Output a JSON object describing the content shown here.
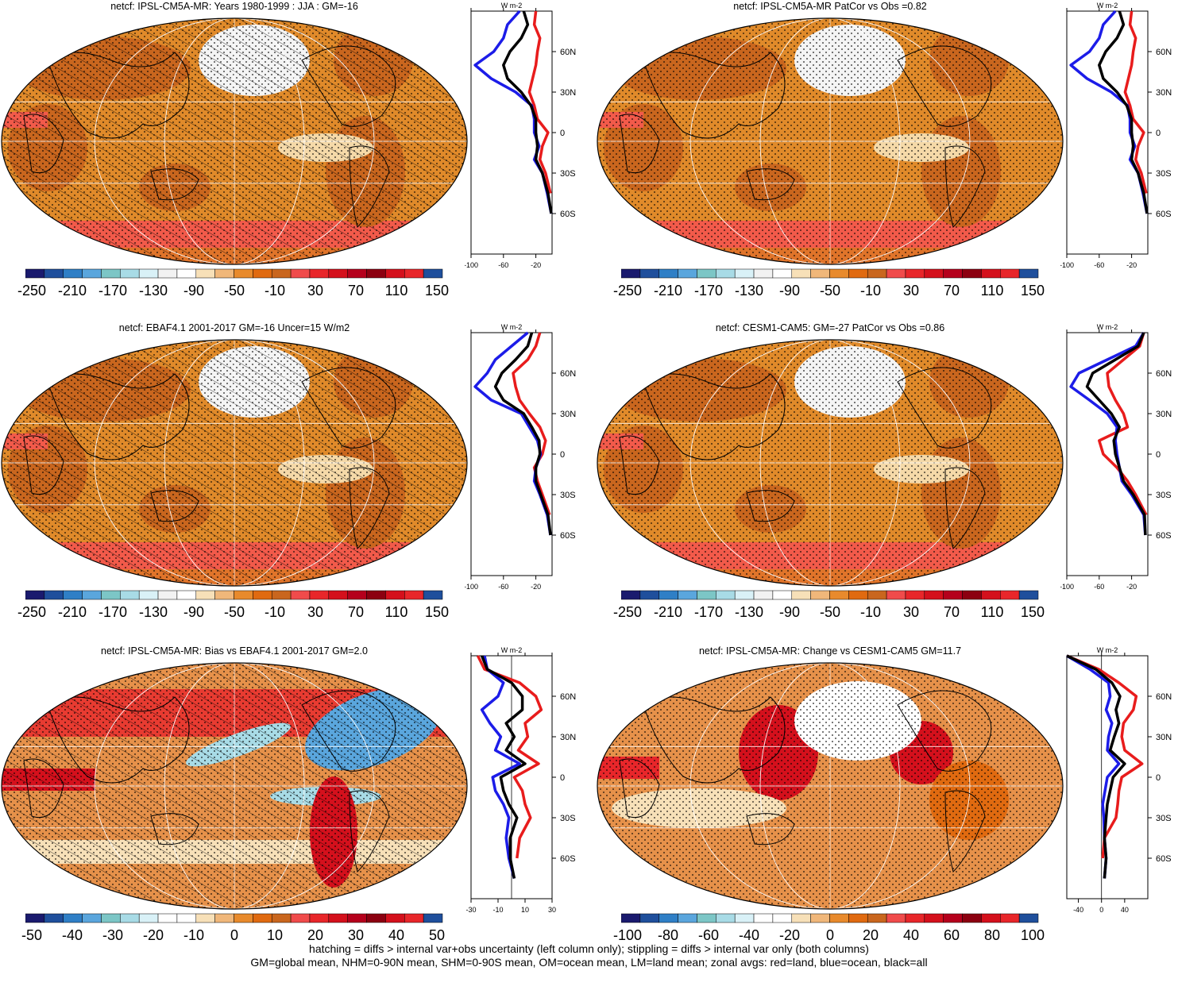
{
  "panels": [
    {
      "id": "p1",
      "title": "netcf: IPSL-CM5A-MR: Years 1980-1999 : JJA : GM=-16",
      "mapType": "abs",
      "hatch": true,
      "cbar": {
        "labels": [
          "-250",
          "-210",
          "-170",
          "-130",
          "-90",
          "-50",
          "-10",
          "30",
          "70",
          "110",
          "150"
        ]
      },
      "zonal": {
        "xlim": [
          -100,
          0
        ],
        "xticks": [
          "-100",
          "-60",
          "-20"
        ],
        "zero_line": false
      },
      "lat_ticks": [
        "60N",
        "30N",
        "0",
        "30S",
        "60S"
      ],
      "unit_label": "W m-2"
    },
    {
      "id": "p2",
      "title": "netcf: IPSL-CM5A-MR PatCor vs Obs =0.82",
      "mapType": "abs",
      "hatch": false,
      "cbar": {
        "labels": [
          "-250",
          "-210",
          "-170",
          "-130",
          "-90",
          "-50",
          "-10",
          "30",
          "70",
          "110",
          "150"
        ]
      },
      "zonal": {
        "xlim": [
          -100,
          0
        ],
        "xticks": [
          "-100",
          "-60",
          "-20"
        ],
        "zero_line": false
      },
      "lat_ticks": [
        "60N",
        "30N",
        "0",
        "30S",
        "60S"
      ],
      "unit_label": "W m-2"
    },
    {
      "id": "p3",
      "title": "netcf: EBAF4.1 2001-2017 GM=-16 Uncer=15 W/m2",
      "mapType": "abs",
      "hatch": true,
      "cbar": {
        "labels": [
          "-250",
          "-210",
          "-170",
          "-130",
          "-90",
          "-50",
          "-10",
          "30",
          "70",
          "110",
          "150"
        ]
      },
      "zonal": {
        "xlim": [
          -100,
          0
        ],
        "xticks": [
          "-100",
          "-60",
          "-20"
        ],
        "zero_line": false
      },
      "lat_ticks": [
        "60N",
        "30N",
        "0",
        "30S",
        "60S"
      ],
      "unit_label": "W m-2"
    },
    {
      "id": "p4",
      "title": "netcf: CESM1-CAM5: GM=-27 PatCor vs Obs =0.86",
      "mapType": "abs",
      "hatch": false,
      "cbar": {
        "labels": [
          "-250",
          "-210",
          "-170",
          "-130",
          "-90",
          "-50",
          "-10",
          "30",
          "70",
          "110",
          "150"
        ]
      },
      "zonal": {
        "xlim": [
          -100,
          0
        ],
        "xticks": [
          "-100",
          "-60",
          "-20"
        ],
        "zero_line": false
      },
      "lat_ticks": [
        "60N",
        "30N",
        "0",
        "30S",
        "60S"
      ],
      "unit_label": "W m-2"
    },
    {
      "id": "p5",
      "title": "netcf: IPSL-CM5A-MR: Bias vs EBAF4.1 2001-2017 GM=2.0",
      "mapType": "bias",
      "hatch": true,
      "cbar": {
        "labels": [
          "-50",
          "-40",
          "-30",
          "-20",
          "-10",
          "0",
          "10",
          "20",
          "30",
          "40",
          "50"
        ]
      },
      "zonal": {
        "xlim": [
          -30,
          30
        ],
        "xticks": [
          "-30",
          "-10",
          "10",
          "30"
        ],
        "zero_line": true
      },
      "lat_ticks": [
        "60N",
        "30N",
        "0",
        "30S",
        "60S"
      ],
      "unit_label": "W m-2"
    },
    {
      "id": "p6",
      "title": "netcf: IPSL-CM5A-MR: Change vs CESM1-CAM5 GM=11.7",
      "mapType": "change",
      "hatch": false,
      "cbar": {
        "labels": [
          "-100",
          "-80",
          "-60",
          "-40",
          "-20",
          "0",
          "20",
          "40",
          "60",
          "80",
          "100"
        ]
      },
      "zonal": {
        "xlim": [
          -60,
          80
        ],
        "xticks": [
          "-40",
          "0",
          "40"
        ],
        "zero_line": true
      },
      "lat_ticks": [
        "60N",
        "30N",
        "0",
        "30S",
        "60S"
      ],
      "unit_label": "W m-2"
    }
  ],
  "footer": {
    "line1": "hatching = diffs > internal var+obs uncertainty (left column only); stippling = diffs > internal var only (both columns)",
    "line2": "GM=global mean, NHM=0-90N mean, SHM=0-90S mean, OM=ocean mean, LM=land mean; zonal avgs: red=land, blue=ocean, black=all"
  },
  "colors": {
    "abs_scale": [
      "#1a1a6e",
      "#1f4f9c",
      "#2f7fc6",
      "#5aa6dd",
      "#7cc6c6",
      "#a8dbe6",
      "#d9f1f7",
      "#f2f2f2",
      "#ffffff",
      "#f7e0b8",
      "#f0b77a",
      "#e88a2c",
      "#e06a10",
      "#c9661e",
      "#f04b4b",
      "#e8262a",
      "#d4101c",
      "#b5001c",
      "#8c0010",
      "#d4101c",
      "#e8262a",
      "#1f4f9c"
    ],
    "land_line": "#e81c1c",
    "ocean_line": "#1c1ce8",
    "all_line": "#000000"
  },
  "chart_data": [
    {
      "panel": "p1",
      "type": "line",
      "ylabel": "W m-2",
      "xlim": [
        -100,
        0
      ],
      "ylim": [
        -90,
        90
      ],
      "lat": [
        -90,
        -75,
        -60,
        -45,
        -30,
        -20,
        -10,
        0,
        10,
        20,
        30,
        40,
        50,
        60,
        70,
        80,
        90
      ],
      "series": [
        {
          "color": "red",
          "values": [
            null,
            null,
            null,
            -2,
            -8,
            -15,
            -12,
            -5,
            -18,
            -22,
            -28,
            -24,
            -20,
            -18,
            -15,
            -22,
            -20
          ]
        },
        {
          "color": "blue",
          "values": [
            null,
            null,
            -1,
            -6,
            -12,
            -22,
            -16,
            -22,
            -22,
            -25,
            -45,
            -75,
            -95,
            -72,
            -60,
            -55,
            -40
          ]
        },
        {
          "color": "black",
          "values": [
            null,
            null,
            -1,
            -5,
            -12,
            -20,
            -18,
            -20,
            -20,
            -26,
            -38,
            -55,
            -60,
            -52,
            -38,
            -30,
            -35
          ]
        }
      ]
    },
    {
      "panel": "p2",
      "type": "line",
      "ylabel": "W m-2",
      "xlim": [
        -100,
        0
      ],
      "ylim": [
        -90,
        90
      ],
      "lat": [
        -90,
        -75,
        -60,
        -45,
        -30,
        -20,
        -10,
        0,
        10,
        20,
        30,
        40,
        50,
        60,
        70,
        80,
        90
      ],
      "series": [
        {
          "color": "red",
          "values": [
            null,
            null,
            null,
            -2,
            -8,
            -15,
            -12,
            -5,
            -18,
            -22,
            -28,
            -24,
            -20,
            -18,
            -15,
            -22,
            -20
          ]
        },
        {
          "color": "blue",
          "values": [
            null,
            null,
            -1,
            -6,
            -12,
            -22,
            -16,
            -22,
            -22,
            -25,
            -45,
            -75,
            -95,
            -72,
            -60,
            -55,
            -40
          ]
        },
        {
          "color": "black",
          "values": [
            null,
            null,
            -1,
            -5,
            -12,
            -20,
            -18,
            -20,
            -20,
            -26,
            -38,
            -55,
            -60,
            -52,
            -38,
            -30,
            -35
          ]
        }
      ]
    },
    {
      "panel": "p3",
      "type": "line",
      "ylabel": "W m-2",
      "xlim": [
        -100,
        0
      ],
      "ylim": [
        -90,
        90
      ],
      "lat": [
        -90,
        -75,
        -60,
        -45,
        -30,
        -20,
        -10,
        0,
        10,
        20,
        30,
        40,
        50,
        60,
        70,
        80,
        90
      ],
      "series": [
        {
          "color": "red",
          "values": [
            null,
            null,
            null,
            -3,
            -12,
            -18,
            -22,
            -12,
            -8,
            -15,
            -28,
            -40,
            -45,
            -48,
            -30,
            -20,
            -15
          ]
        },
        {
          "color": "blue",
          "values": [
            null,
            null,
            -2,
            -6,
            -15,
            -22,
            -20,
            -14,
            -18,
            -28,
            -38,
            -75,
            -95,
            -80,
            -70,
            -50,
            -30
          ]
        },
        {
          "color": "black",
          "values": [
            null,
            null,
            -2,
            -5,
            -14,
            -20,
            -20,
            -15,
            -16,
            -25,
            -35,
            -60,
            -70,
            -62,
            -45,
            -30,
            -25
          ]
        }
      ]
    },
    {
      "panel": "p4",
      "type": "line",
      "ylabel": "W m-2",
      "xlim": [
        -100,
        0
      ],
      "ylim": [
        -90,
        90
      ],
      "lat": [
        -90,
        -75,
        -60,
        -45,
        -30,
        -20,
        -10,
        0,
        10,
        20,
        30,
        40,
        50,
        60,
        70,
        80,
        90
      ],
      "series": [
        {
          "color": "red",
          "values": [
            null,
            null,
            null,
            -2,
            -15,
            -25,
            -38,
            -55,
            -60,
            -25,
            -30,
            -40,
            -48,
            -50,
            -30,
            -10,
            -5
          ]
        },
        {
          "color": "blue",
          "values": [
            null,
            null,
            -3,
            -5,
            -20,
            -32,
            -35,
            -38,
            -40,
            -38,
            -50,
            -72,
            -95,
            -85,
            -50,
            -15,
            -5
          ]
        },
        {
          "color": "black",
          "values": [
            null,
            null,
            -3,
            -4,
            -18,
            -30,
            -35,
            -40,
            -42,
            -35,
            -45,
            -60,
            -75,
            -68,
            -40,
            -12,
            -5
          ]
        }
      ]
    },
    {
      "panel": "p5",
      "type": "line",
      "ylabel": "W m-2",
      "xlim": [
        -30,
        30
      ],
      "ylim": [
        -90,
        90
      ],
      "lat": [
        -90,
        -75,
        -60,
        -45,
        -30,
        -20,
        -10,
        0,
        10,
        20,
        30,
        40,
        50,
        60,
        70,
        80,
        90
      ],
      "series": [
        {
          "color": "red",
          "values": [
            null,
            null,
            4,
            6,
            14,
            10,
            8,
            2,
            20,
            5,
            12,
            10,
            22,
            18,
            6,
            -20,
            -25
          ]
        },
        {
          "color": "blue",
          "values": [
            null,
            2,
            -2,
            -4,
            -2,
            -6,
            -12,
            -14,
            6,
            -12,
            -8,
            -16,
            -22,
            -10,
            -6,
            -18,
            -20
          ]
        },
        {
          "color": "black",
          "values": [
            null,
            2,
            -1,
            -1,
            4,
            -2,
            -6,
            -8,
            10,
            -4,
            2,
            -4,
            8,
            8,
            0,
            -18,
            -22
          ]
        }
      ]
    },
    {
      "panel": "p6",
      "type": "line",
      "ylabel": "W m-2",
      "xlim": [
        -60,
        80
      ],
      "ylim": [
        -90,
        90
      ],
      "lat": [
        -90,
        -75,
        -60,
        -45,
        -30,
        -20,
        -10,
        0,
        10,
        20,
        30,
        40,
        50,
        60,
        70,
        80,
        90
      ],
      "series": [
        {
          "color": "red",
          "values": [
            null,
            null,
            2,
            5,
            25,
            28,
            30,
            35,
            70,
            40,
            35,
            38,
            55,
            60,
            30,
            -5,
            -60
          ]
        },
        {
          "color": "blue",
          "values": [
            null,
            5,
            8,
            5,
            4,
            2,
            6,
            10,
            30,
            10,
            12,
            18,
            8,
            15,
            12,
            -20,
            -60
          ]
        },
        {
          "color": "black",
          "values": [
            null,
            5,
            8,
            5,
            8,
            10,
            15,
            20,
            40,
            15,
            22,
            30,
            25,
            32,
            18,
            -10,
            -60
          ]
        }
      ]
    }
  ]
}
